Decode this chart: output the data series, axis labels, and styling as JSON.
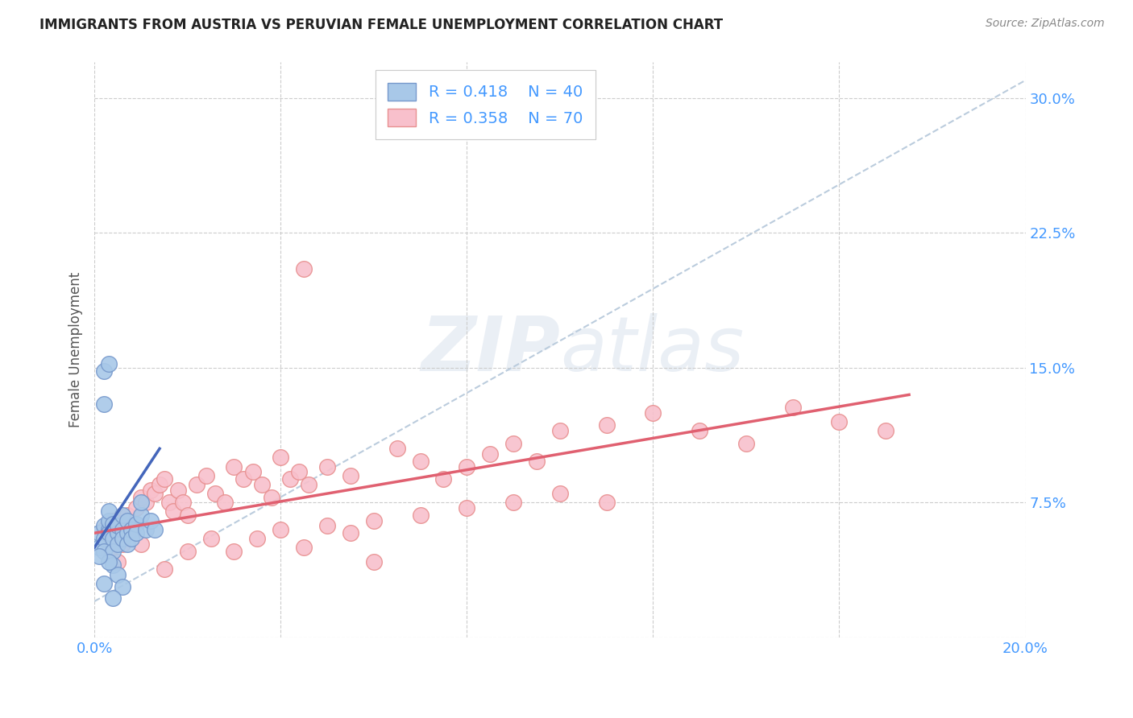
{
  "title": "IMMIGRANTS FROM AUSTRIA VS PERUVIAN FEMALE UNEMPLOYMENT CORRELATION CHART",
  "source": "Source: ZipAtlas.com",
  "ylabel": "Female Unemployment",
  "xlim": [
    0.0,
    0.2
  ],
  "ylim": [
    0.0,
    0.32
  ],
  "xticks": [
    0.0,
    0.04,
    0.08,
    0.12,
    0.16,
    0.2
  ],
  "xtick_labels": [
    "0.0%",
    "",
    "",
    "",
    "",
    "20.0%"
  ],
  "yticks": [
    0.075,
    0.15,
    0.225,
    0.3
  ],
  "ytick_labels": [
    "7.5%",
    "15.0%",
    "22.5%",
    "30.0%"
  ],
  "background_color": "#ffffff",
  "grid_color": "#cccccc",
  "watermark": "ZIPatlas",
  "austria_color": "#a8c8e8",
  "austria_edge_color": "#7799cc",
  "peruvian_color": "#f8c0cc",
  "peruvian_edge_color": "#e89090",
  "austria_line_color": "#4466bb",
  "peruvian_line_color": "#e06070",
  "dashed_line_color": "#bbccdd",
  "austria_scatter_x": [
    0.001,
    0.001,
    0.002,
    0.002,
    0.002,
    0.003,
    0.003,
    0.003,
    0.003,
    0.004,
    0.004,
    0.004,
    0.005,
    0.005,
    0.005,
    0.006,
    0.006,
    0.006,
    0.007,
    0.007,
    0.007,
    0.008,
    0.008,
    0.009,
    0.009,
    0.01,
    0.01,
    0.011,
    0.012,
    0.013,
    0.002,
    0.003,
    0.004,
    0.005,
    0.006,
    0.002,
    0.003,
    0.004,
    0.001,
    0.002
  ],
  "austria_scatter_y": [
    0.058,
    0.05,
    0.062,
    0.055,
    0.048,
    0.06,
    0.058,
    0.065,
    0.07,
    0.063,
    0.055,
    0.048,
    0.058,
    0.052,
    0.062,
    0.06,
    0.055,
    0.068,
    0.058,
    0.065,
    0.052,
    0.06,
    0.055,
    0.063,
    0.058,
    0.068,
    0.075,
    0.06,
    0.065,
    0.06,
    0.148,
    0.152,
    0.04,
    0.035,
    0.028,
    0.13,
    0.042,
    0.022,
    0.045,
    0.03
  ],
  "peruvian_scatter_x": [
    0.002,
    0.003,
    0.004,
    0.005,
    0.006,
    0.007,
    0.008,
    0.009,
    0.01,
    0.011,
    0.012,
    0.013,
    0.014,
    0.015,
    0.016,
    0.017,
    0.018,
    0.019,
    0.02,
    0.022,
    0.024,
    0.026,
    0.028,
    0.03,
    0.032,
    0.034,
    0.036,
    0.038,
    0.04,
    0.042,
    0.044,
    0.046,
    0.05,
    0.055,
    0.06,
    0.065,
    0.07,
    0.075,
    0.08,
    0.085,
    0.09,
    0.095,
    0.1,
    0.11,
    0.12,
    0.13,
    0.14,
    0.15,
    0.16,
    0.17,
    0.003,
    0.005,
    0.008,
    0.01,
    0.015,
    0.02,
    0.025,
    0.03,
    0.035,
    0.04,
    0.045,
    0.05,
    0.055,
    0.06,
    0.07,
    0.08,
    0.09,
    0.1,
    0.11,
    0.045
  ],
  "peruvian_scatter_y": [
    0.06,
    0.055,
    0.065,
    0.058,
    0.052,
    0.068,
    0.062,
    0.072,
    0.078,
    0.075,
    0.082,
    0.08,
    0.085,
    0.088,
    0.075,
    0.07,
    0.082,
    0.075,
    0.068,
    0.085,
    0.09,
    0.08,
    0.075,
    0.095,
    0.088,
    0.092,
    0.085,
    0.078,
    0.1,
    0.088,
    0.092,
    0.085,
    0.095,
    0.09,
    0.042,
    0.105,
    0.098,
    0.088,
    0.095,
    0.102,
    0.108,
    0.098,
    0.115,
    0.118,
    0.125,
    0.115,
    0.108,
    0.128,
    0.12,
    0.115,
    0.048,
    0.042,
    0.058,
    0.052,
    0.038,
    0.048,
    0.055,
    0.048,
    0.055,
    0.06,
    0.05,
    0.062,
    0.058,
    0.065,
    0.068,
    0.072,
    0.075,
    0.08,
    0.075,
    0.205
  ],
  "austria_trend_x": [
    0.0,
    0.014
  ],
  "austria_trend_y": [
    0.05,
    0.105
  ],
  "peruvian_trend_x": [
    0.0,
    0.175
  ],
  "peruvian_trend_y": [
    0.058,
    0.135
  ],
  "dashed_trend_x": [
    0.0,
    0.2
  ],
  "dashed_trend_y": [
    0.02,
    0.31
  ]
}
